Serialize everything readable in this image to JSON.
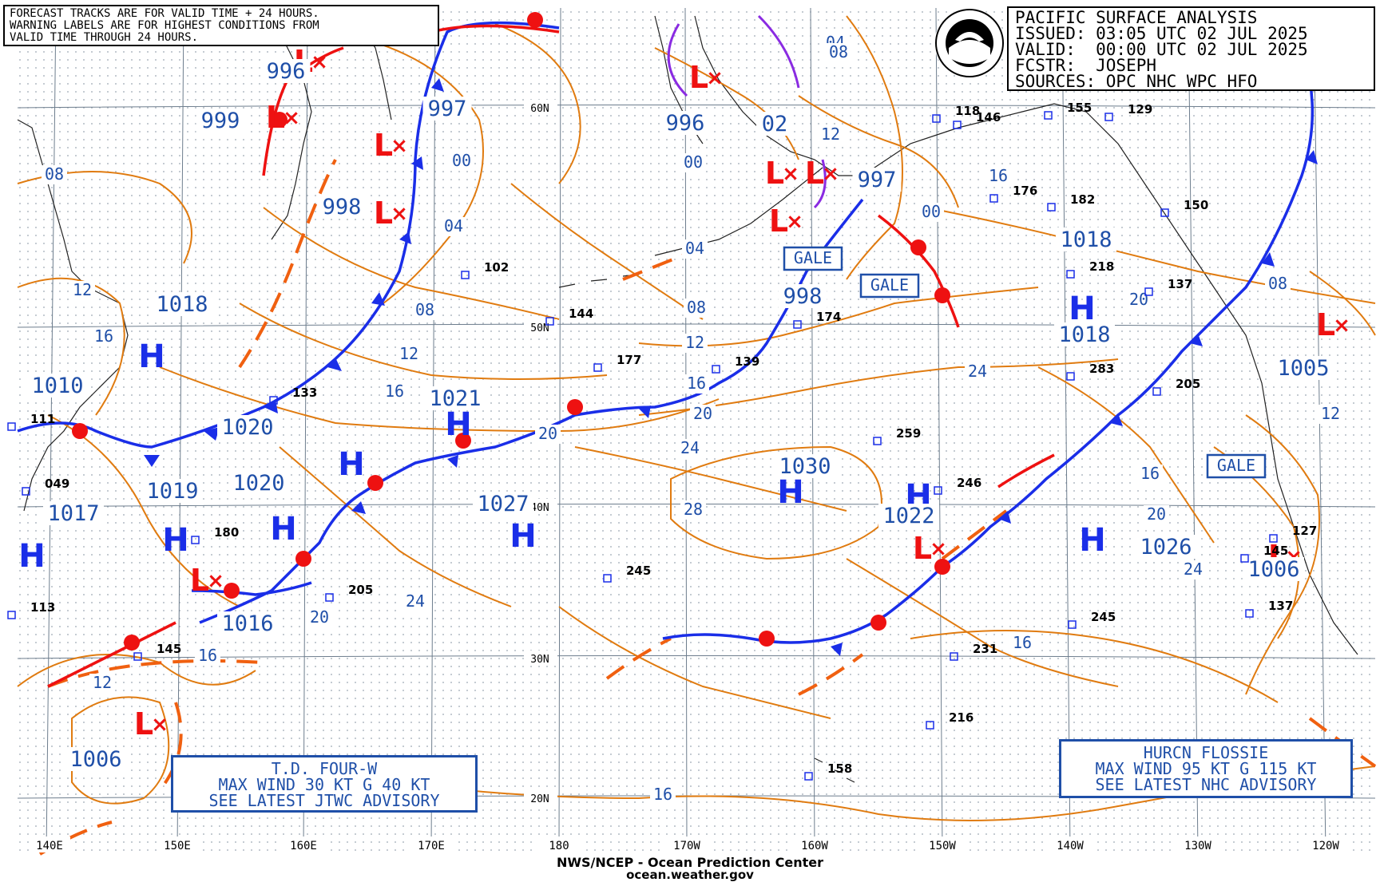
{
  "header": {
    "title": "PACIFIC SURFACE ANALYSIS",
    "issued": "ISSUED: 03:05 UTC 02 JUL 2025",
    "valid": "VALID:  00:00 UTC 02 JUL 2025",
    "forecaster": "FCSTR:  JOSEPH",
    "sources": "SOURCES: OPC NHC WPC HFO"
  },
  "forecast_note": {
    "line1": "FORECAST TRACKS ARE FOR VALID TIME + 24 HOURS.",
    "line2": "WARNING LABELS ARE FOR HIGHEST CONDITIONS FROM",
    "line3": "VALID TIME THROUGH 24 HOURS."
  },
  "advisories": {
    "td_four_w": {
      "line1": "T.D. FOUR-W",
      "line2": "MAX WIND 30 KT G 40 KT",
      "line3": "SEE LATEST JTWC ADVISORY"
    },
    "hurcn_flossie": {
      "line1": "HURCN FLOSSIE",
      "line2": "MAX WIND 95 KT G 115 KT",
      "line3": "SEE LATEST NHC ADVISORY"
    }
  },
  "footer": {
    "agency": "NWS/NCEP - Ocean Prediction Center",
    "site": "ocean.weather.gov"
  },
  "colors": {
    "isobar": "#e07b10",
    "front_cold": "#1a2ee8",
    "front_warm": "#ee1111",
    "label": "#1f4fa8",
    "grid": "#7a8a9a",
    "coast": "#222222",
    "low": "#ee1111",
    "high": "#1a2ee8",
    "occluded": "#8a2be2"
  },
  "lon_labels": [
    "140E",
    "150E",
    "160E",
    "170E",
    "180",
    "170W",
    "160W",
    "150W",
    "140W",
    "130W",
    "120W"
  ],
  "lat_labels": [
    "60N",
    "50N",
    "40N",
    "30N",
    "20N"
  ],
  "pressure_centers": [
    {
      "type": "H",
      "value": "1018"
    },
    {
      "type": "H",
      "value": "1010"
    },
    {
      "type": "H",
      "value": "1019"
    },
    {
      "type": "H",
      "value": "1017"
    },
    {
      "type": "H",
      "value": "1020"
    },
    {
      "type": "H",
      "value": "1020"
    },
    {
      "type": "H",
      "value": "1021"
    },
    {
      "type": "H",
      "value": "1027"
    },
    {
      "type": "H",
      "value": "1030"
    },
    {
      "type": "H",
      "value": "1022"
    },
    {
      "type": "H",
      "value": "1026"
    },
    {
      "type": "H",
      "value": "1018"
    },
    {
      "type": "H",
      "value": "1018"
    },
    {
      "type": "L",
      "value": "996"
    },
    {
      "type": "L",
      "value": "999"
    },
    {
      "type": "L",
      "value": "997"
    },
    {
      "type": "L",
      "value": "998"
    },
    {
      "type": "L",
      "value": "996"
    },
    {
      "type": "L",
      "value": "02"
    },
    {
      "type": "L",
      "value": "997"
    },
    {
      "type": "L",
      "value": "998"
    },
    {
      "type": "L",
      "value": "1022"
    },
    {
      "type": "L",
      "value": "1016"
    },
    {
      "type": "L",
      "value": "1006"
    },
    {
      "type": "L",
      "value": "1005"
    },
    {
      "type": "L",
      "value": "1006"
    }
  ],
  "isobar_labels": [
    "08",
    "12",
    "16",
    "00",
    "04",
    "08",
    "12",
    "16",
    "20",
    "24",
    "28",
    "04",
    "08",
    "12",
    "16",
    "20",
    "24",
    "00",
    "00",
    "04",
    "08",
    "12",
    "16",
    "20",
    "24",
    "16",
    "20",
    "24",
    "16",
    "12",
    "08",
    "12",
    "16",
    "20",
    "24",
    "16"
  ],
  "warnings": [
    "GALE",
    "GALE",
    "GALE"
  ],
  "station_values": [
    "102",
    "144",
    "177",
    "133",
    "139",
    "174",
    "118",
    "146",
    "155",
    "129",
    "176",
    "182",
    "150",
    "218",
    "137",
    "283",
    "205",
    "259",
    "246",
    "245",
    "205",
    "180",
    "113",
    "145",
    "231",
    "216",
    "158",
    "245",
    "137",
    "145",
    "127",
    "049",
    "111"
  ]
}
